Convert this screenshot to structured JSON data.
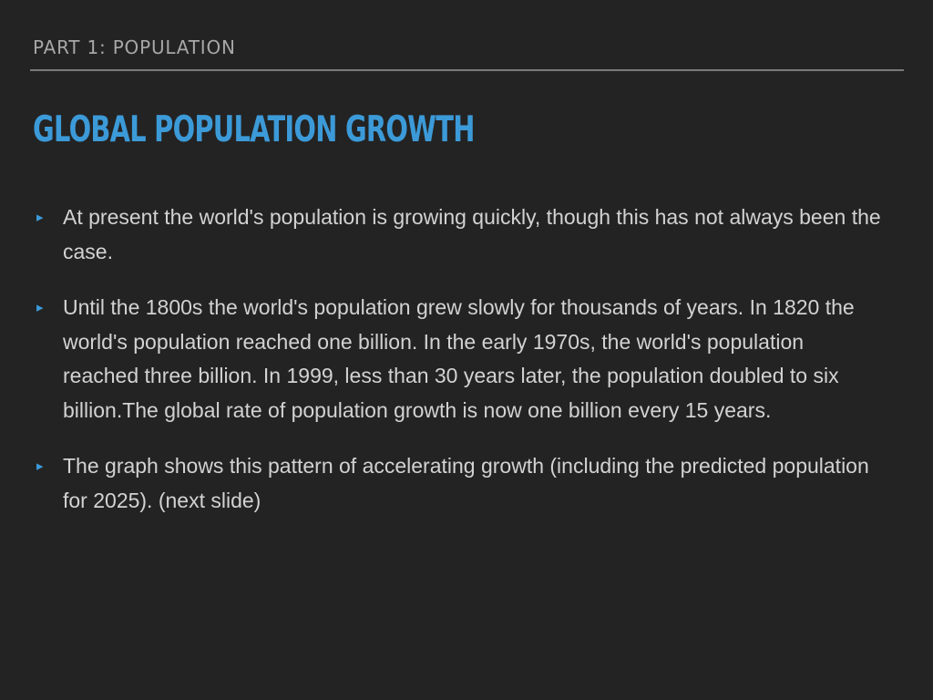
{
  "slide": {
    "section_label": "PART 1: POPULATION",
    "title": "GLOBAL POPULATION GROWTH",
    "bullet_icon": "triangle-bullet",
    "accent_color": "#3c9ad8",
    "background_color": "#232323",
    "text_color": "#d2d2d2",
    "bullets": [
      {
        "text": " At present the world's population is growing quickly, though this has not always been the case."
      },
      {
        "text": "Until the 1800s the world's population grew slowly for thousands of years. In 1820 the world's population reached one billion. In the early 1970s, the world's population reached three billion. In 1999, less than 30 years later, the population doubled to six billion.The global rate of population growth is now one billion every 15 years."
      },
      {
        "text": "The graph shows this pattern of accelerating growth (including the predicted population for 2025). (next slide)"
      }
    ]
  }
}
